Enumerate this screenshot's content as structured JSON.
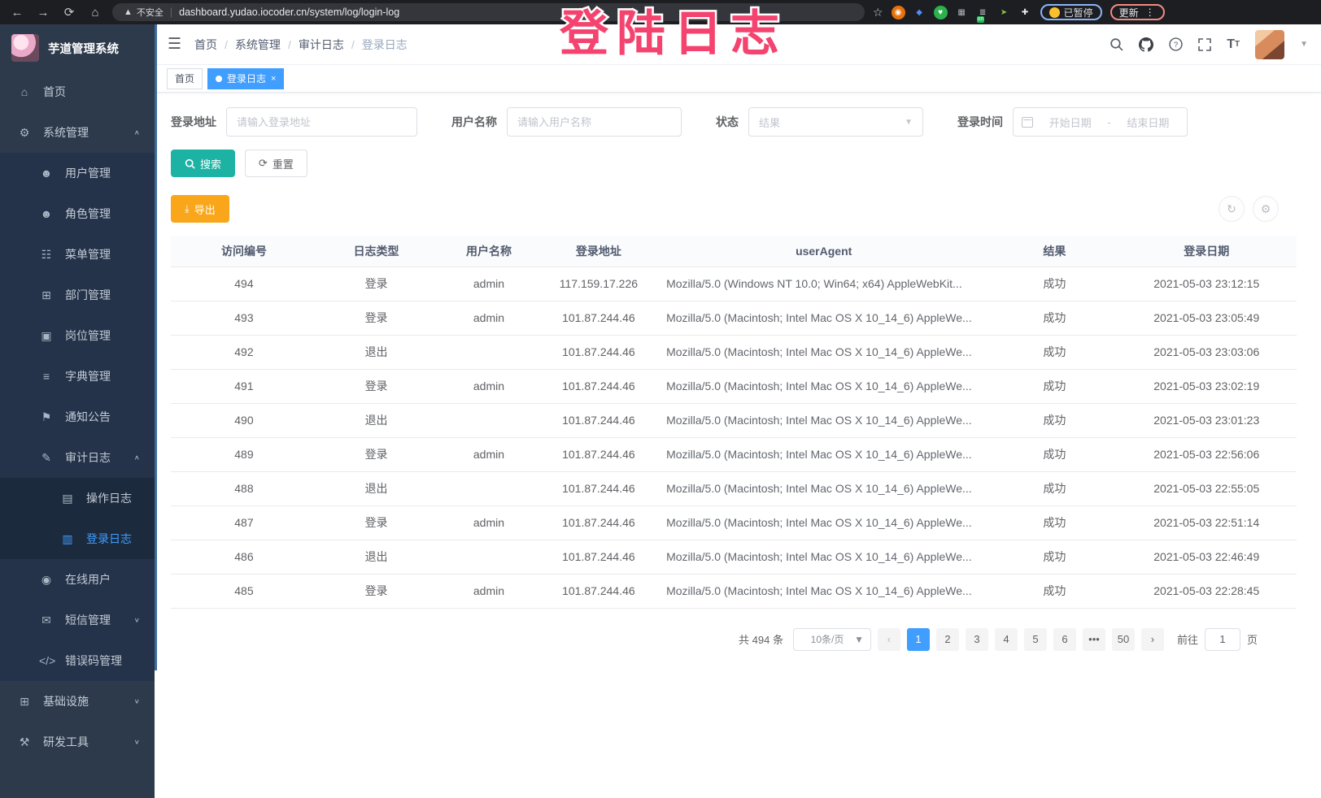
{
  "browser": {
    "back_icon": "←",
    "forward_icon": "→",
    "reload_icon": "⟳",
    "home_icon": "⌂",
    "warning_icon": "▲",
    "security_label": "不安全",
    "url": "dashboard.yudao.iocoder.cn/system/log/login-log",
    "bookmark_icon": "☆",
    "extensions": [
      {
        "key": "ext-orange",
        "glyph": "◉",
        "bg": "#e8710a",
        "fg": "#fff"
      },
      {
        "key": "ext-blue-gem",
        "glyph": "◆",
        "bg": "transparent",
        "fg": "#4f8df5"
      },
      {
        "key": "ext-green-heart",
        "glyph": "♥",
        "bg": "#2bb24c",
        "fg": "#fff"
      },
      {
        "key": "ext-grid",
        "glyph": "▦",
        "bg": "transparent",
        "fg": "#aeb3b9"
      },
      {
        "key": "ext-list-on",
        "glyph": "≣",
        "bg": "transparent",
        "fg": "#cfd2d6",
        "badge": "on"
      },
      {
        "key": "ext-leaf",
        "glyph": "➤",
        "bg": "transparent",
        "fg": "#8bc34a"
      },
      {
        "key": "ext-puzzle",
        "glyph": "✚",
        "bg": "transparent",
        "fg": "#e8eaed"
      }
    ],
    "paused_label": "已暂停",
    "update_label": "更新",
    "menu_icon": "⋮"
  },
  "overlay": {
    "text": "登陆日志",
    "color": "#f4436f"
  },
  "sidebar": {
    "title": "芋道管理系统",
    "menu": [
      {
        "key": "home",
        "label": "首页",
        "icon": "home",
        "level": 1
      },
      {
        "key": "system",
        "label": "系统管理",
        "icon": "gear",
        "level": 1,
        "arrow": "up"
      },
      {
        "key": "user-mgmt",
        "label": "用户管理",
        "icon": "user",
        "level": 2
      },
      {
        "key": "role-mgmt",
        "label": "角色管理",
        "icon": "users",
        "level": 2
      },
      {
        "key": "menu-mgmt",
        "label": "菜单管理",
        "icon": "tree-menu",
        "level": 2
      },
      {
        "key": "dept-mgmt",
        "label": "部门管理",
        "icon": "org-chart",
        "level": 2
      },
      {
        "key": "post-mgmt",
        "label": "岗位管理",
        "icon": "badge",
        "level": 2
      },
      {
        "key": "dict-mgmt",
        "label": "字典管理",
        "icon": "dictionary",
        "level": 2
      },
      {
        "key": "notice",
        "label": "通知公告",
        "icon": "megaphone",
        "level": 2
      },
      {
        "key": "audit-log",
        "label": "审计日志",
        "icon": "edit-log",
        "level": 2,
        "arrow": "up"
      },
      {
        "key": "operate-log",
        "label": "操作日志",
        "icon": "document",
        "level": 3
      },
      {
        "key": "login-log",
        "label": "登录日志",
        "icon": "login-log",
        "level": 3,
        "active": true
      },
      {
        "key": "online-user",
        "label": "在线用户",
        "icon": "online-user",
        "level": 2
      },
      {
        "key": "sms-mgmt",
        "label": "短信管理",
        "icon": "sms",
        "level": 2,
        "arrow": "down"
      },
      {
        "key": "error-code",
        "label": "错误码管理",
        "icon": "code",
        "level": 2
      },
      {
        "key": "infrastructure",
        "label": "基础设施",
        "icon": "infra",
        "level": 1,
        "arrow": "down"
      },
      {
        "key": "dev-tools",
        "label": "研发工具",
        "icon": "tools",
        "level": 1,
        "arrow": "down"
      }
    ]
  },
  "navbar": {
    "breadcrumb": [
      "首页",
      "系统管理",
      "审计日志",
      "登录日志"
    ]
  },
  "tags": {
    "home_label": "首页",
    "active_label": "登录日志",
    "close_icon": "×"
  },
  "filters": {
    "login_address_label": "登录地址",
    "login_address_placeholder": "请输入登录地址",
    "username_label": "用户名称",
    "username_placeholder": "请输入用户名称",
    "status_label": "状态",
    "status_placeholder": "结果",
    "login_time_label": "登录时间",
    "date_start_placeholder": "开始日期",
    "date_separator": "-",
    "date_end_placeholder": "结束日期",
    "search_label": "搜索",
    "reset_label": "重置"
  },
  "toolbar": {
    "export_label": "导出",
    "refresh_icon": "↻",
    "settings_icon": "⚙"
  },
  "table": {
    "headers": [
      "访问编号",
      "日志类型",
      "用户名称",
      "登录地址",
      "userAgent",
      "结果",
      "登录日期"
    ],
    "rows": [
      [
        "494",
        "登录",
        "admin",
        "117.159.17.226",
        "Mozilla/5.0 (Windows NT 10.0; Win64; x64) AppleWebKit...",
        "成功",
        "2021-05-03 23:12:15"
      ],
      [
        "493",
        "登录",
        "admin",
        "101.87.244.46",
        "Mozilla/5.0 (Macintosh; Intel Mac OS X 10_14_6) AppleWe...",
        "成功",
        "2021-05-03 23:05:49"
      ],
      [
        "492",
        "退出",
        "",
        "101.87.244.46",
        "Mozilla/5.0 (Macintosh; Intel Mac OS X 10_14_6) AppleWe...",
        "成功",
        "2021-05-03 23:03:06"
      ],
      [
        "491",
        "登录",
        "admin",
        "101.87.244.46",
        "Mozilla/5.0 (Macintosh; Intel Mac OS X 10_14_6) AppleWe...",
        "成功",
        "2021-05-03 23:02:19"
      ],
      [
        "490",
        "退出",
        "",
        "101.87.244.46",
        "Mozilla/5.0 (Macintosh; Intel Mac OS X 10_14_6) AppleWe...",
        "成功",
        "2021-05-03 23:01:23"
      ],
      [
        "489",
        "登录",
        "admin",
        "101.87.244.46",
        "Mozilla/5.0 (Macintosh; Intel Mac OS X 10_14_6) AppleWe...",
        "成功",
        "2021-05-03 22:56:06"
      ],
      [
        "488",
        "退出",
        "",
        "101.87.244.46",
        "Mozilla/5.0 (Macintosh; Intel Mac OS X 10_14_6) AppleWe...",
        "成功",
        "2021-05-03 22:55:05"
      ],
      [
        "487",
        "登录",
        "admin",
        "101.87.244.46",
        "Mozilla/5.0 (Macintosh; Intel Mac OS X 10_14_6) AppleWe...",
        "成功",
        "2021-05-03 22:51:14"
      ],
      [
        "486",
        "退出",
        "",
        "101.87.244.46",
        "Mozilla/5.0 (Macintosh; Intel Mac OS X 10_14_6) AppleWe...",
        "成功",
        "2021-05-03 22:46:49"
      ],
      [
        "485",
        "登录",
        "admin",
        "101.87.244.46",
        "Mozilla/5.0 (Macintosh; Intel Mac OS X 10_14_6) AppleWe...",
        "成功",
        "2021-05-03 22:28:45"
      ]
    ]
  },
  "pagination": {
    "total_label": "共 494 条",
    "page_size_label": "10条/页",
    "prev_icon": "‹",
    "next_icon": "›",
    "pages": [
      "1",
      "2",
      "3",
      "4",
      "5",
      "6",
      "•••",
      "50"
    ],
    "active_page": "1",
    "jump_label": "前往",
    "jump_value": "1",
    "jump_suffix": "页"
  }
}
